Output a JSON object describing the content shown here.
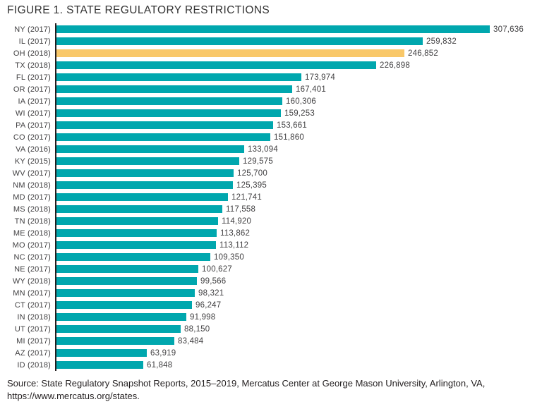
{
  "title": "FIGURE 1. STATE REGULATORY RESTRICTIONS",
  "source": {
    "line1": "Source: State Regulatory Snapshot Reports, 2015–2019, Mercatus Center at George Mason University, Arlington, VA,",
    "line2": "https://www.mercatus.org/states."
  },
  "chart_data": {
    "type": "bar",
    "orientation": "horizontal",
    "title": "FIGURE 1. STATE REGULATORY RESTRICTIONS",
    "grid": false,
    "legend": "none",
    "xlim": [
      0,
      307636
    ],
    "bar_color": "#00a7ae",
    "highlight_color": "#f9c869",
    "axis_color": "#231f20",
    "highlight_index": 2,
    "categories": [
      "NY (2017)",
      "IL (2017)",
      "OH (2018)",
      "TX (2018)",
      "FL (2017)",
      "OR (2017)",
      "IA (2017)",
      "WI (2017)",
      "PA (2017)",
      "CO (2017)",
      "VA (2016)",
      "KY (2015)",
      "WV (2017)",
      "NM (2018)",
      "MD (2017)",
      "MS (2018)",
      "TN (2018)",
      "ME (2018)",
      "MO (2017)",
      "NC (2017)",
      "NE (2017)",
      "WY (2018)",
      "MN (2017)",
      "CT (2017)",
      "IN (2018)",
      "UT (2017)",
      "MI (2017)",
      "AZ (2017)",
      "ID (2018)"
    ],
    "values": [
      307636,
      259832,
      246852,
      226898,
      173974,
      167401,
      160306,
      159253,
      153661,
      151860,
      133094,
      129575,
      125700,
      125395,
      121741,
      117558,
      114920,
      113862,
      113112,
      109350,
      100627,
      99566,
      98321,
      96247,
      91998,
      88150,
      83484,
      63919,
      61848
    ],
    "value_labels": [
      "307,636",
      "259,832",
      "246,852",
      "226,898",
      "173,974",
      "167,401",
      "160,306",
      "159,253",
      "153,661",
      "151,860",
      "133,094",
      "129,575",
      "125,700",
      "125,395",
      "121,741",
      "117,558",
      "114,920",
      "113,862",
      "113,112",
      "109,350",
      "100,627",
      "99,566",
      "98,321",
      "96,247",
      "91,998",
      "88,150",
      "83,484",
      "63,919",
      "61,848"
    ],
    "max_value": 307636
  }
}
